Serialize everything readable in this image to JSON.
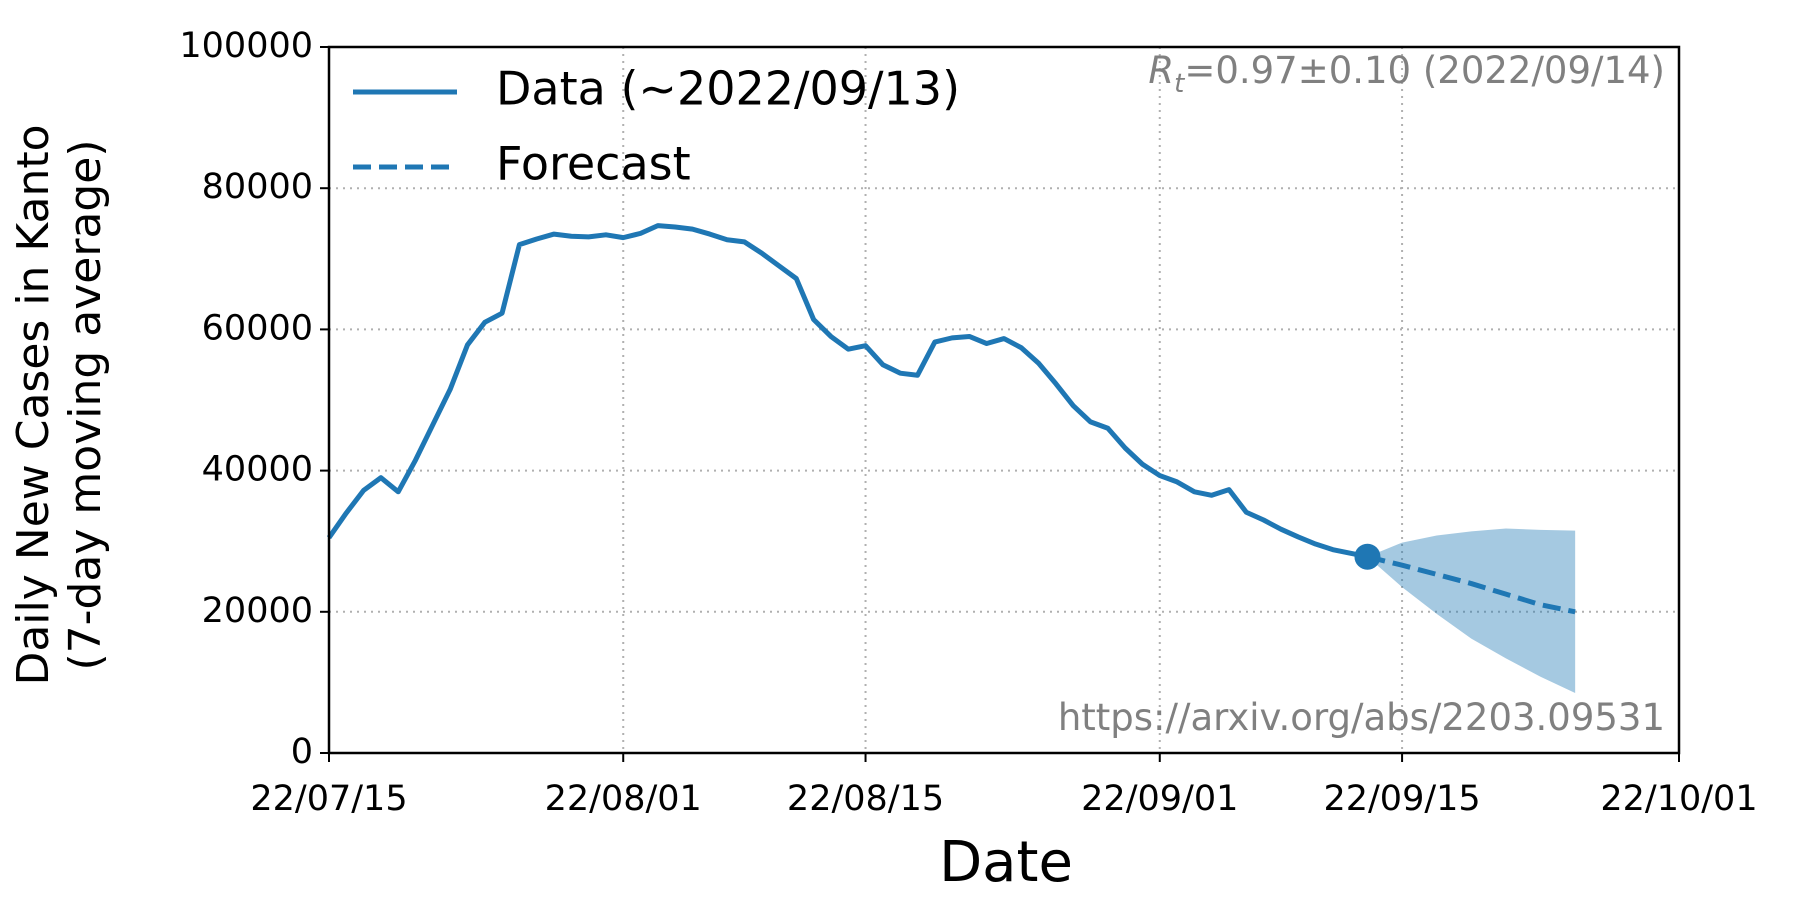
{
  "chart_data": {
    "type": "line",
    "x_label": "Date",
    "y_label": [
      "Daily New Cases in Kanto",
      "(7-day moving average)"
    ],
    "xlim": [
      "2022-07-15",
      "2022-10-01"
    ],
    "xticks": [
      {
        "value": "2022-07-15",
        "label": "22/07/15"
      },
      {
        "value": "2022-08-01",
        "label": "22/08/01"
      },
      {
        "value": "2022-08-15",
        "label": "22/08/15"
      },
      {
        "value": "2022-09-01",
        "label": "22/09/01"
      },
      {
        "value": "2022-09-15",
        "label": "22/09/15"
      },
      {
        "value": "2022-10-01",
        "label": "22/10/01"
      }
    ],
    "ylim": [
      0,
      100000
    ],
    "yticks": [
      0,
      20000,
      40000,
      60000,
      80000,
      100000
    ],
    "grid": true,
    "legend": "upper left",
    "annotations": [
      {
        "symbol": "R",
        "subscript": "t",
        "text": "=0.97±0.10 (2022/09/14)"
      },
      {
        "text": "https://arxiv.org/abs/2203.09531"
      }
    ],
    "series": [
      {
        "name": "Data (~2022/09/13)",
        "color": "#1f77b4",
        "style": "solid",
        "x": [
          "2022-07-15",
          "2022-07-16",
          "2022-07-17",
          "2022-07-18",
          "2022-07-19",
          "2022-07-20",
          "2022-07-21",
          "2022-07-22",
          "2022-07-23",
          "2022-07-24",
          "2022-07-25",
          "2022-07-26",
          "2022-07-27",
          "2022-07-28",
          "2022-07-29",
          "2022-07-30",
          "2022-07-31",
          "2022-08-01",
          "2022-08-02",
          "2022-08-03",
          "2022-08-04",
          "2022-08-05",
          "2022-08-06",
          "2022-08-07",
          "2022-08-08",
          "2022-08-09",
          "2022-08-10",
          "2022-08-11",
          "2022-08-12",
          "2022-08-13",
          "2022-08-14",
          "2022-08-15",
          "2022-08-16",
          "2022-08-17",
          "2022-08-18",
          "2022-08-19",
          "2022-08-20",
          "2022-08-21",
          "2022-08-22",
          "2022-08-23",
          "2022-08-24",
          "2022-08-25",
          "2022-08-26",
          "2022-08-27",
          "2022-08-28",
          "2022-08-29",
          "2022-08-30",
          "2022-08-31",
          "2022-09-01",
          "2022-09-02",
          "2022-09-03",
          "2022-09-04",
          "2022-09-05",
          "2022-09-06",
          "2022-09-07",
          "2022-09-08",
          "2022-09-09",
          "2022-09-10",
          "2022-09-11",
          "2022-09-12",
          "2022-09-13"
        ],
        "values": [
          30500,
          34000,
          37200,
          39000,
          37000,
          41500,
          46500,
          51500,
          57800,
          61000,
          62300,
          72000,
          72800,
          73500,
          73200,
          73100,
          73400,
          73000,
          73600,
          74700,
          74500,
          74200,
          73500,
          72700,
          72400,
          70800,
          69000,
          67200,
          61400,
          59000,
          57200,
          57700,
          55000,
          53800,
          53500,
          58200,
          58800,
          59000,
          58000,
          58700,
          57400,
          55200,
          52300,
          49200,
          46900,
          46000,
          43200,
          40900,
          39300,
          38400,
          37000,
          36500,
          37300,
          34100,
          33000,
          31700,
          30600,
          29600,
          28800,
          28300,
          27800
        ]
      },
      {
        "name": "Forecast",
        "color": "#1f77b4",
        "style": "dashed",
        "x": [
          "2022-09-13",
          "2022-09-15",
          "2022-09-17",
          "2022-09-19",
          "2022-09-21",
          "2022-09-23",
          "2022-09-25"
        ],
        "values": [
          27800,
          26600,
          25300,
          24000,
          22500,
          21000,
          20000
        ],
        "lower": [
          27800,
          23500,
          19700,
          16200,
          13400,
          10800,
          8500
        ],
        "upper": [
          27800,
          29800,
          30800,
          31400,
          31800,
          31600,
          31500
        ]
      }
    ]
  }
}
